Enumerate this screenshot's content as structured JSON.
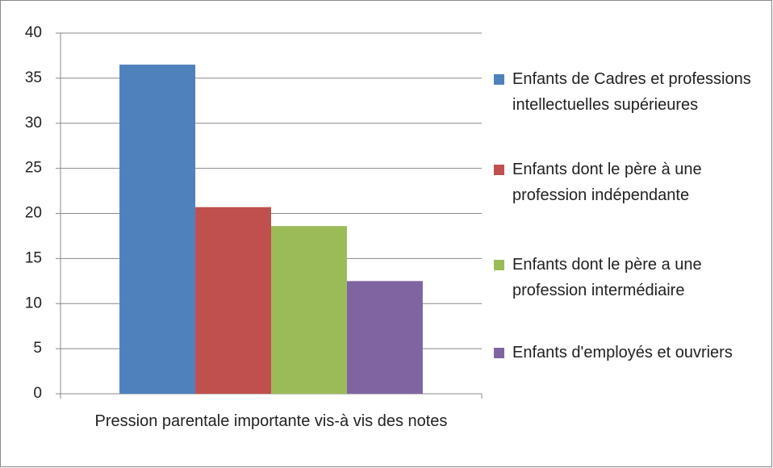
{
  "chart_data": {
    "type": "bar",
    "categories": [
      "Pression parentale importante vis-à vis des notes"
    ],
    "series": [
      {
        "name": "Enfants de Cadres et professions intellectuelles supérieures",
        "color": "#4f81bd",
        "values": [
          36.5
        ]
      },
      {
        "name": "Enfants dont le père à une profession indépendante",
        "color": "#c0504d",
        "values": [
          20.7
        ]
      },
      {
        "name": "Enfants dont le père a une profession intermédiaire",
        "color": "#9bbb59",
        "values": [
          18.6
        ]
      },
      {
        "name": "Enfants d'employés et ouvriers",
        "color": "#8064a2",
        "values": [
          12.5
        ]
      }
    ],
    "ylim": [
      0,
      40
    ],
    "yticks": [
      0,
      5,
      10,
      15,
      20,
      25,
      30,
      35,
      40
    ],
    "grid": true,
    "legend": "right"
  }
}
